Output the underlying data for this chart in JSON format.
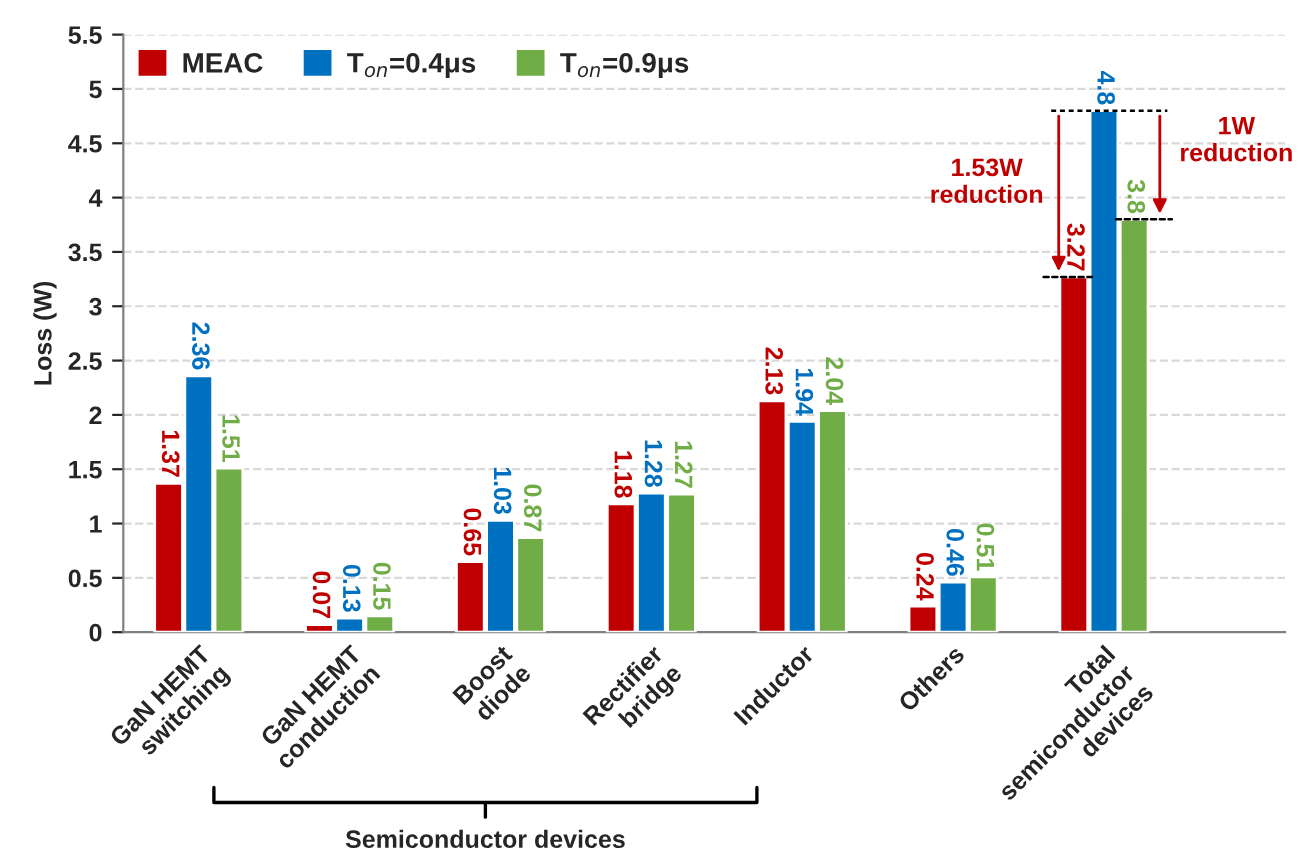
{
  "chart_data": {
    "type": "bar",
    "ylabel": "Loss (W)",
    "categories": [
      "GaN HEMT\nswitching",
      "GaN HEMT\nconduction",
      "Boost\ndiode",
      "Rectifier\nbridge",
      "Inductor",
      "Others",
      "Total\nsemiconductor\ndevices"
    ],
    "series": [
      {
        "name": "MEAC",
        "color": "#c00000",
        "values": [
          1.37,
          0.07,
          0.65,
          1.18,
          2.13,
          0.24,
          3.27
        ]
      },
      {
        "name": "T$_{on}$=0.4μs",
        "color": "#0070c0",
        "values": [
          2.36,
          0.13,
          1.03,
          1.28,
          1.94,
          0.46,
          4.8
        ]
      },
      {
        "name": "T$_{on}$=0.9μs",
        "color": "#70ad47",
        "values": [
          1.51,
          0.15,
          0.87,
          1.27,
          2.04,
          0.51,
          3.8
        ]
      }
    ],
    "ylim": [
      0,
      5.5
    ],
    "yticks": [
      0,
      0.5,
      1,
      1.5,
      2,
      2.5,
      3,
      3.5,
      4,
      4.5,
      5,
      5.5
    ],
    "ref_lines": [
      {
        "axis": "y",
        "value": 4.8,
        "color": "#000000",
        "line_style": "dashed"
      }
    ],
    "grid": "y",
    "legend": "top left",
    "data_labels": true,
    "annotations": [
      "1.53W\nreduction",
      "1W\nreduction",
      "Semiconductor devices"
    ]
  }
}
